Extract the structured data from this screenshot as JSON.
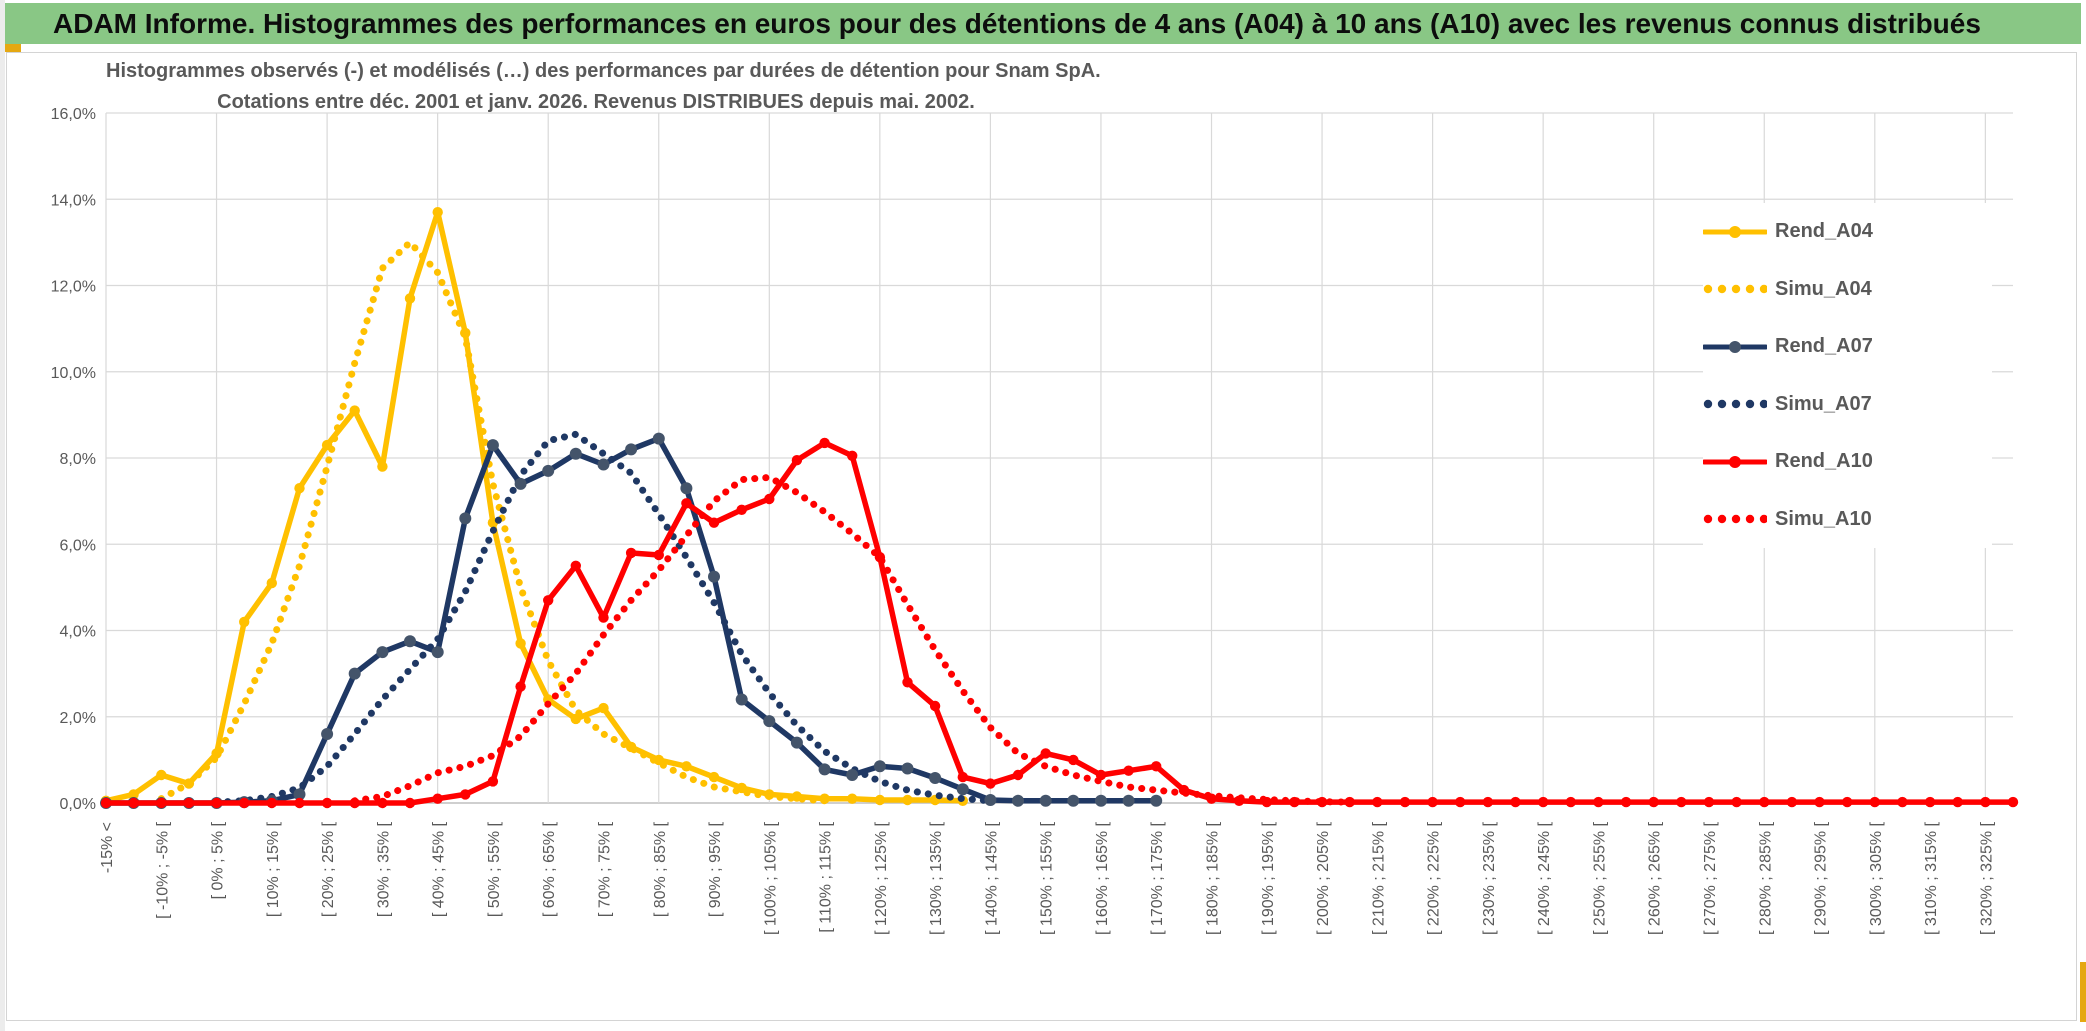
{
  "window": {
    "banner_title": "ADAM Informe. Histogrammes des performances en euros pour des détentions de 4 ans (A04) à 10 ans (A10) avec les revenus connus distribués"
  },
  "colors": {
    "banner_green": "#89C785",
    "accent_gold": "#E5A812",
    "grid": "#D9D9D9",
    "axis": "#BFBFBF",
    "text_gray": "#595959",
    "series_yellow": "#FFC000",
    "series_navy": "#1F3864",
    "navy_marker": "#44546A",
    "series_red": "#FF0000"
  },
  "chart": {
    "title_line1": "Histogrammes observés (-) et modélisés (…) des performances par durées de détention pour Snam SpA.",
    "title_line2": "Cotations entre déc. 2001 et janv. 2026. Revenus DISTRIBUES depuis mai. 2002.",
    "legend": [
      {
        "label": "Rend_A04"
      },
      {
        "label": "Simu_A04"
      },
      {
        "label": "Rend_A07"
      },
      {
        "label": "Simu_A07"
      },
      {
        "label": "Rend_A10"
      },
      {
        "label": "Simu_A10"
      }
    ]
  },
  "chart_data": {
    "type": "line",
    "title": "Histogrammes observés (-) et modélisés (…) des performances par durées de détention pour Snam SpA.",
    "subtitle": "Cotations entre déc. 2001 et janv. 2026. Revenus DISTRIBUES depuis mai. 2002.",
    "ylabel": "",
    "xlabel": "",
    "ylim": [
      0,
      16
    ],
    "y_tick_labels": [
      "0,0%",
      "2,0%",
      "4,0%",
      "6,0%",
      "8,0%",
      "10,0%",
      "12,0%",
      "14,0%",
      "16,0%"
    ],
    "grid": true,
    "legend_position": "right-inside",
    "bin_width_pct": 5,
    "first_bin_center_pct": -17.5,
    "n_bins": 70,
    "x_tick_every_n_bins": 2,
    "x_tick_labels": [
      "-15% <",
      "[ -10% ; -5% [",
      "[ 0% ; 5% [",
      "[ 10% ; 15% [",
      "[ 20% ; 25% [",
      "[ 30% ; 35% [",
      "[ 40% ; 45% [",
      "[ 50% ; 55% [",
      "[ 60% ; 65% [",
      "[ 70% ; 75% [",
      "[ 80% ; 85% [",
      "[ 90% ; 95% [",
      "[ 100% ; 105% [",
      "[ 110% ; 115% [",
      "[ 120% ; 125% [",
      "[ 130% ; 135% [",
      "[ 140% ; 145% [",
      "[ 150% ; 155% [",
      "[ 160% ; 165% [",
      "[ 170% ; 175% [",
      "[ 180% ; 185% [",
      "[ 190% ; 195% [",
      "[ 200% ; 205% [",
      "[ 210% ; 215% [",
      "[ 220% ; 225% [",
      "[ 230% ; 235% [",
      "[ 240% ; 245% [",
      "[ 250% ; 255% [",
      "[ 260% ; 265% [",
      "[ 270% ; 275% [",
      "[ 280% ; 285% [",
      "[ 290% ; 295% [",
      "[ 300% ; 305% [",
      "[ 310% ; 315% [",
      "[ 320% ; 325% ["
    ],
    "series": [
      {
        "name": "Rend_A04",
        "style": "solid",
        "color": "#FFC000",
        "marker_color": "#FFC000",
        "values": [
          0.05,
          0.2,
          0.65,
          0.45,
          1.15,
          4.2,
          5.1,
          7.3,
          8.3,
          9.1,
          7.8,
          11.7,
          13.7,
          10.9,
          6.5,
          3.7,
          2.4,
          1.95,
          2.2,
          1.3,
          1.0,
          0.85,
          0.6,
          0.35,
          0.2,
          0.15,
          0.1,
          0.1,
          0.07,
          0.07,
          0.07,
          0.05
        ]
      },
      {
        "name": "Simu_A04",
        "style": "dotted",
        "color": "#FFC000",
        "values": [
          null,
          null,
          0.1,
          0.45,
          1.05,
          2.3,
          3.7,
          5.5,
          7.8,
          10.2,
          12.4,
          13.0,
          12.3,
          10.8,
          7.4,
          5.0,
          3.3,
          2.15,
          1.6,
          1.27,
          0.93,
          0.6,
          0.37,
          0.26,
          0.15,
          0.1,
          0.05
        ]
      },
      {
        "name": "Rend_A07",
        "style": "solid",
        "color": "#1F3864",
        "marker_color": "#44546A",
        "values": [
          0,
          0,
          0,
          0,
          0,
          0.02,
          0.05,
          0.2,
          1.6,
          3.0,
          3.5,
          3.75,
          3.5,
          6.6,
          8.3,
          7.4,
          7.7,
          8.1,
          7.85,
          8.2,
          8.45,
          7.3,
          5.25,
          2.4,
          1.9,
          1.4,
          0.78,
          0.65,
          0.85,
          0.8,
          0.58,
          0.32,
          0.07,
          0.05,
          0.05,
          0.05,
          0.05,
          0.05,
          0.05
        ]
      },
      {
        "name": "Simu_A07",
        "style": "dotted",
        "color": "#1F3864",
        "values": [
          null,
          null,
          null,
          null,
          0.02,
          0.05,
          0.15,
          0.35,
          0.85,
          1.6,
          2.4,
          3.1,
          3.8,
          4.9,
          6.3,
          7.6,
          8.4,
          8.55,
          8.1,
          7.65,
          6.7,
          5.7,
          4.65,
          3.45,
          2.55,
          1.8,
          1.2,
          0.8,
          0.5,
          0.3,
          0.18,
          0.1,
          0.05
        ]
      },
      {
        "name": "Rend_A10",
        "style": "solid",
        "color": "#FF0000",
        "marker_color": "#FF0000",
        "values": [
          0,
          0,
          0,
          0,
          0,
          0,
          0,
          0,
          0,
          0,
          0,
          0,
          0.1,
          0.2,
          0.5,
          2.7,
          4.7,
          5.5,
          4.3,
          5.8,
          5.75,
          6.95,
          6.5,
          6.8,
          7.05,
          7.95,
          8.35,
          8.05,
          5.7,
          2.8,
          2.25,
          0.6,
          0.45,
          0.65,
          1.15,
          1.0,
          0.65,
          0.75,
          0.85,
          0.3,
          0.1,
          0.05,
          0.02,
          0.02,
          0.02,
          0.02,
          0.02,
          0.02,
          0.02,
          0.02,
          0.02,
          0.02,
          0.02,
          0.02,
          0.02,
          0.02,
          0.02,
          0.02,
          0.02,
          0.02,
          0.02,
          0.02,
          0.02,
          0.02,
          0.02,
          0.02,
          0.02,
          0.02,
          0.02,
          0.02
        ]
      },
      {
        "name": "Simu_A10",
        "style": "dotted",
        "color": "#FF0000",
        "values": [
          null,
          null,
          null,
          null,
          null,
          null,
          null,
          null,
          null,
          0.05,
          0.15,
          0.4,
          0.7,
          0.85,
          1.1,
          1.55,
          2.3,
          3.0,
          3.9,
          4.7,
          5.4,
          6.2,
          7.0,
          7.5,
          7.55,
          7.2,
          6.75,
          6.25,
          5.7,
          4.6,
          3.55,
          2.6,
          1.75,
          1.15,
          0.85,
          0.65,
          0.5,
          0.37,
          0.3,
          0.23,
          0.17,
          0.12,
          0.08,
          0.05,
          0.03,
          0.02
        ]
      }
    ]
  }
}
